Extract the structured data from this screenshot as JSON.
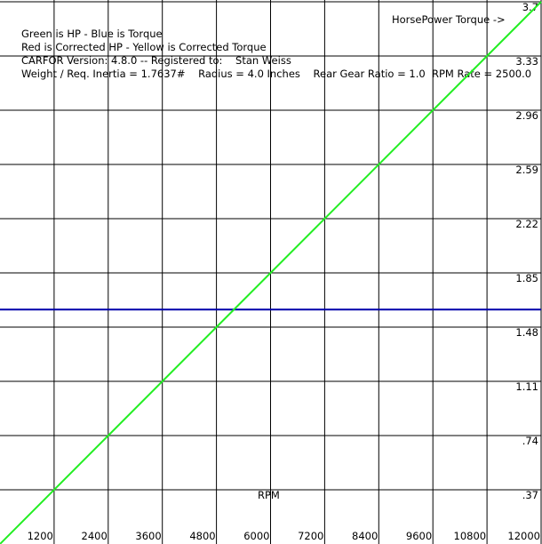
{
  "chart_data": {
    "type": "line",
    "annotations": [
      "Green is HP - Blue is Torque",
      "Red is Corrected HP - Yellow is Corrected Torque",
      "CARFOR Version: 4.8.0 -- Registered to:    Stan Weiss",
      "Weight / Req. Inertia = 1.7637#    Radius = 4.0 Inches    Rear Gear Ratio = 1.0  RPM Rate = 2500.0"
    ],
    "legend_label": "HorsePower Torque ->",
    "x_label": "RPM",
    "x": [
      0,
      12000
    ],
    "series": [
      {
        "name": "HP",
        "color": "#22ee22",
        "values": [
          0,
          3.7
        ]
      },
      {
        "name": "Torque",
        "color": "#0000aa",
        "values": [
          1.6,
          1.6
        ]
      }
    ],
    "xlim": [
      0,
      12000
    ],
    "xticks": [
      1200,
      2400,
      3600,
      4800,
      6000,
      7200,
      8400,
      9600,
      10800,
      12000
    ],
    "ylim": [
      0,
      3.7
    ],
    "yticks": [
      {
        "value": 0.37,
        "label": ".37"
      },
      {
        "value": 0.74,
        "label": ".74"
      },
      1.11,
      1.48,
      1.85,
      2.22,
      2.59,
      2.96,
      3.33,
      3.7
    ],
    "grid": true
  }
}
